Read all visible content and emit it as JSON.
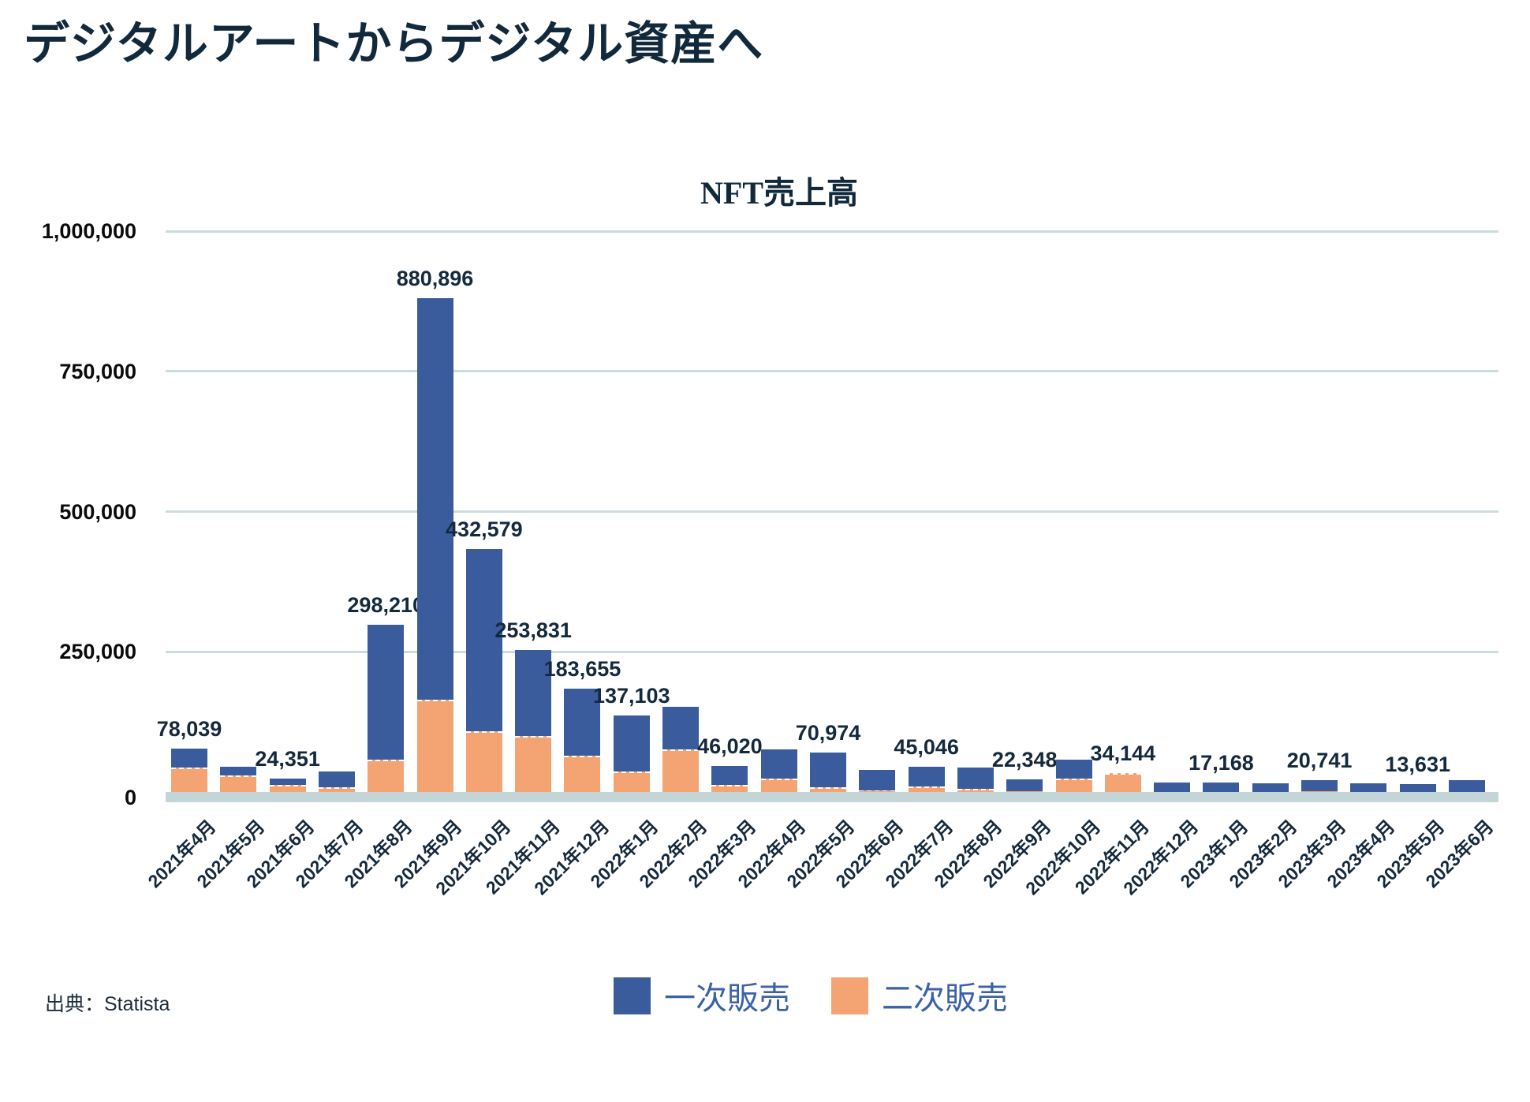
{
  "page_title": "デジタルアートからデジタル資産へ",
  "chart_title": "NFT売上高",
  "source": "出典：Statista",
  "colors": {
    "primary": "#3A5C9D",
    "secondary": "#F4A473",
    "grid": "#CBDCDE",
    "zero_axis": "#C3D5D7",
    "title_text": "#12293B",
    "bar_label_text": "#15293D",
    "legend_text": "#3A61A9",
    "background": "#FFFFFF"
  },
  "legend": [
    {
      "label": "一次販売",
      "color": "#3A5C9D"
    },
    {
      "label": "二次販売",
      "color": "#F4A473"
    }
  ],
  "y_axis": {
    "ticks": [
      {
        "label": "1,000,000",
        "value": 1000000
      },
      {
        "label": "750,000",
        "value": 750000
      },
      {
        "label": "500,000",
        "value": 500000
      },
      {
        "label": "250,000",
        "value": 250000
      },
      {
        "label": "0",
        "value": 0
      }
    ]
  },
  "chart_data": {
    "type": "bar",
    "stacked": true,
    "title": "NFT売上高",
    "xlabel": "",
    "ylabel": "",
    "ylim": [
      0,
      1000000
    ],
    "grid": true,
    "legend_position": "bottom",
    "categories": [
      "2021年4月",
      "2021年5月",
      "2021年6月",
      "2021年7月",
      "2021年8月",
      "2021年9月",
      "2021年10月",
      "2021年11月",
      "2021年12月",
      "2022年1月",
      "2022年2月",
      "2022年3月",
      "2022年4月",
      "2022年5月",
      "2022年6月",
      "2022年7月",
      "2022年8月",
      "2022年9月",
      "2022年10月",
      "2022年11月",
      "2022年12月",
      "2023年1月",
      "2023年2月",
      "2023年3月",
      "2023年4月",
      "2023年5月",
      "2023年6月"
    ],
    "series": [
      {
        "name": "一次販売",
        "values": [
          35039,
          15000,
          12351,
          28000,
          241210,
          716896,
          324579,
          153831,
          118655,
          100103,
          76000,
          34020,
          52000,
          62974,
          37000,
          35046,
          39000,
          20348,
          33000,
          0,
          17000,
          17168,
          16000,
          18741,
          15000,
          13631,
          21000
        ]
      },
      {
        "name": "二次販売",
        "values": [
          43000,
          30000,
          12000,
          9000,
          57000,
          164000,
          108000,
          100000,
          65000,
          37000,
          76000,
          12000,
          24000,
          8000,
          3000,
          10000,
          5000,
          2000,
          24000,
          34144,
          0,
          0,
          0,
          2000,
          0,
          0,
          0
        ]
      }
    ],
    "bar_labels": [
      "78,039",
      null,
      "24,351",
      null,
      "298,210",
      "880,896",
      "432,579",
      "253,831",
      "183,655",
      "137,103",
      null,
      "46,020",
      null,
      "70,974",
      null,
      "45,046",
      null,
      "22,348",
      null,
      "34,144",
      null,
      "17,168",
      null,
      "20,741",
      null,
      "13,631",
      null
    ]
  }
}
